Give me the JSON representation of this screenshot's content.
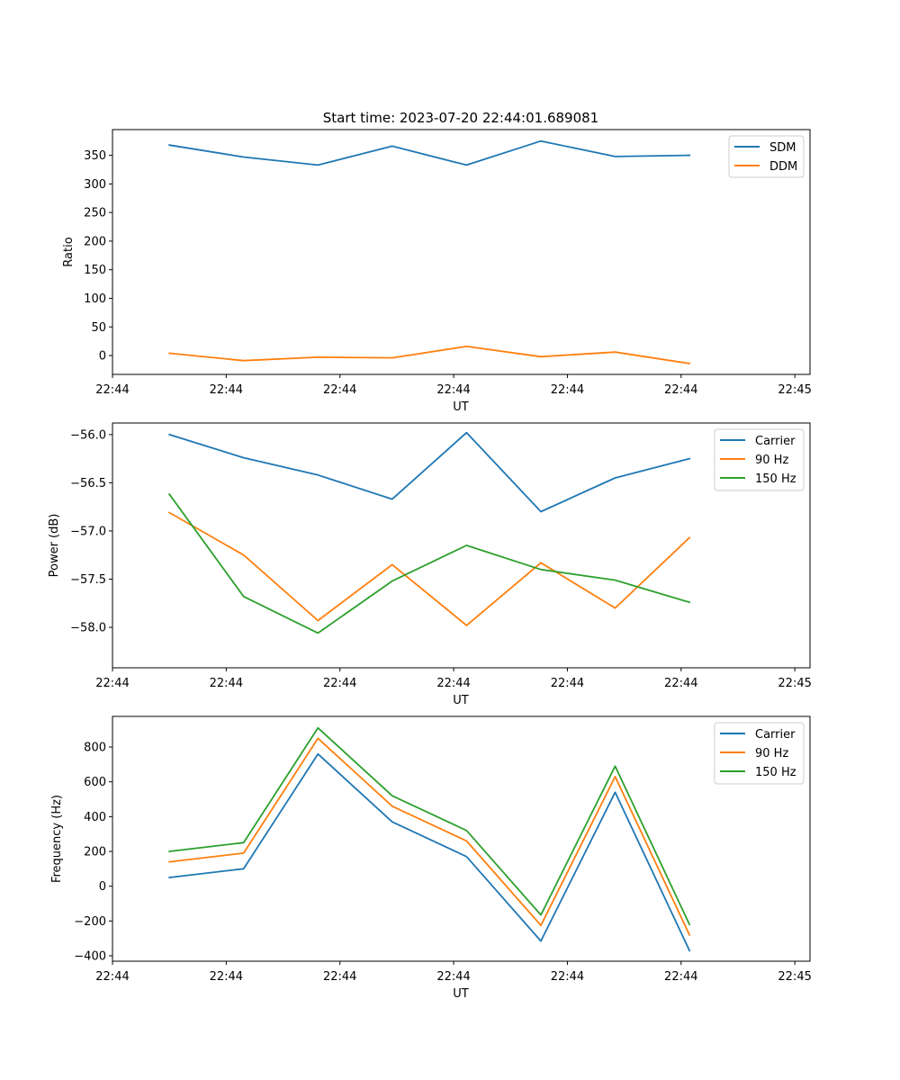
{
  "chart_data": [
    {
      "type": "line",
      "id": "ratio",
      "title": "Start time: 2023-07-20 22:44:01.689081",
      "xlabel": "UT",
      "ylabel": "Ratio",
      "xlim": [
        0,
        9.2
      ],
      "ylim": [
        -33,
        395
      ],
      "yticks": [
        0,
        50,
        100,
        150,
        200,
        250,
        300,
        350
      ],
      "ytick_labels": [
        "0",
        "50",
        "100",
        "150",
        "200",
        "250",
        "300",
        "350"
      ],
      "xticks": [
        0,
        1.5,
        3,
        4.5,
        6,
        7.5,
        9
      ],
      "xtick_labels": [
        "22:44",
        "22:44",
        "22:44",
        "22:44",
        "22:44",
        "22:44",
        "22:45"
      ],
      "x": [
        0.75,
        1.73,
        2.71,
        3.69,
        4.67,
        5.65,
        6.63,
        7.61
      ],
      "legend_location": "top-right",
      "series": [
        {
          "name": "SDM",
          "color": "#1f77b4",
          "values": [
            368,
            347,
            333,
            366,
            333,
            375,
            348,
            350
          ]
        },
        {
          "name": "DDM",
          "color": "#ff7f0e",
          "values": [
            4,
            -9,
            -3,
            -4,
            16,
            -2,
            6,
            -14
          ]
        }
      ]
    },
    {
      "type": "line",
      "id": "power",
      "title": "",
      "xlabel": "UT",
      "ylabel": "Power (dB)",
      "xlim": [
        0,
        9.2
      ],
      "ylim": [
        -58.42,
        -55.88
      ],
      "yticks": [
        -58.0,
        -57.5,
        -57.0,
        -56.5,
        -56.0
      ],
      "ytick_labels": [
        "−58.0",
        "−57.5",
        "−57.0",
        "−56.5",
        "−56.0"
      ],
      "xticks": [
        0,
        1.5,
        3,
        4.5,
        6,
        7.5,
        9
      ],
      "xtick_labels": [
        "22:44",
        "22:44",
        "22:44",
        "22:44",
        "22:44",
        "22:44",
        "22:45"
      ],
      "x": [
        0.75,
        1.73,
        2.71,
        3.69,
        4.67,
        5.65,
        6.63,
        7.61
      ],
      "legend_location": "top-right",
      "series": [
        {
          "name": "Carrier",
          "color": "#1f77b4",
          "values": [
            -56.0,
            -56.24,
            -56.42,
            -56.67,
            -55.98,
            -56.8,
            -56.45,
            -56.25
          ]
        },
        {
          "name": "90 Hz",
          "color": "#ff7f0e",
          "values": [
            -56.81,
            -57.25,
            -57.93,
            -57.35,
            -57.98,
            -57.33,
            -57.8,
            -57.07
          ]
        },
        {
          "name": "150 Hz",
          "color": "#2ca02c",
          "values": [
            -56.62,
            -57.68,
            -58.06,
            -57.52,
            -57.15,
            -57.4,
            -57.51,
            -57.74
          ]
        }
      ]
    },
    {
      "type": "line",
      "id": "frequency",
      "title": "",
      "xlabel": "UT",
      "ylabel": "Frequency (Hz)",
      "xlim": [
        0,
        9.2
      ],
      "ylim": [
        -431,
        976
      ],
      "yticks": [
        -400,
        -200,
        0,
        200,
        400,
        600,
        800
      ],
      "ytick_labels": [
        "−400",
        "−200",
        "0",
        "200",
        "400",
        "600",
        "800"
      ],
      "xticks": [
        0,
        1.5,
        3,
        4.5,
        6,
        7.5,
        9
      ],
      "xtick_labels": [
        "22:44",
        "22:44",
        "22:44",
        "22:44",
        "22:44",
        "22:44",
        "22:45"
      ],
      "x": [
        0.75,
        1.73,
        2.71,
        3.69,
        4.67,
        5.65,
        6.63,
        7.61
      ],
      "legend_location": "top-right",
      "series": [
        {
          "name": "Carrier",
          "color": "#1f77b4",
          "values": [
            50,
            100,
            760,
            370,
            170,
            -315,
            540,
            -370
          ]
        },
        {
          "name": "90 Hz",
          "color": "#ff7f0e",
          "values": [
            140,
            190,
            850,
            460,
            260,
            -225,
            630,
            -280
          ]
        },
        {
          "name": "150 Hz",
          "color": "#2ca02c",
          "values": [
            200,
            250,
            910,
            520,
            320,
            -165,
            690,
            -220
          ]
        }
      ]
    }
  ]
}
